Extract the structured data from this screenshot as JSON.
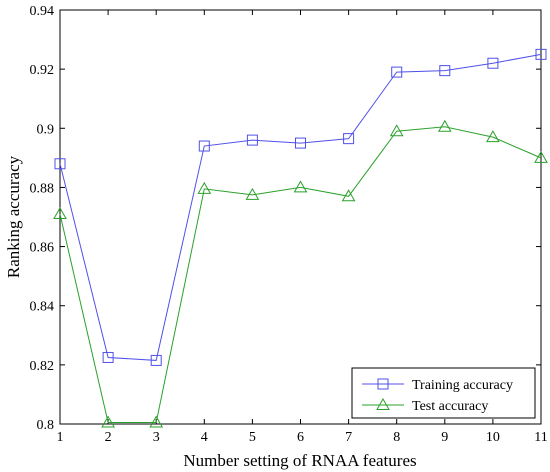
{
  "chart_data": {
    "type": "line",
    "title": "",
    "xlabel": "Number setting of RNAA features",
    "ylabel": "Ranking accuracy",
    "x": [
      1,
      2,
      3,
      4,
      5,
      6,
      7,
      8,
      9,
      10,
      11
    ],
    "xlim": [
      1,
      11
    ],
    "ylim": [
      0.8,
      0.94
    ],
    "xticks": [
      "1",
      "2",
      "3",
      "4",
      "5",
      "6",
      "7",
      "8",
      "9",
      "10",
      "11"
    ],
    "yticks": [
      "0.8",
      "0.82",
      "0.84",
      "0.86",
      "0.88",
      "0.9",
      "0.92",
      "0.94"
    ],
    "grid": false,
    "legend_position": "bottom-right",
    "series": [
      {
        "name": "Training accuracy",
        "color": "#5050e8",
        "marker": "square",
        "values": [
          0.888,
          0.8225,
          0.8215,
          0.894,
          0.896,
          0.895,
          0.8965,
          0.919,
          0.9195,
          0.922,
          0.925
        ]
      },
      {
        "name": "Test accuracy",
        "color": "#2aa02a",
        "marker": "triangle",
        "values": [
          0.871,
          0.8005,
          0.8005,
          0.8795,
          0.8775,
          0.88,
          0.877,
          0.899,
          0.9005,
          0.897,
          0.89
        ]
      }
    ]
  }
}
